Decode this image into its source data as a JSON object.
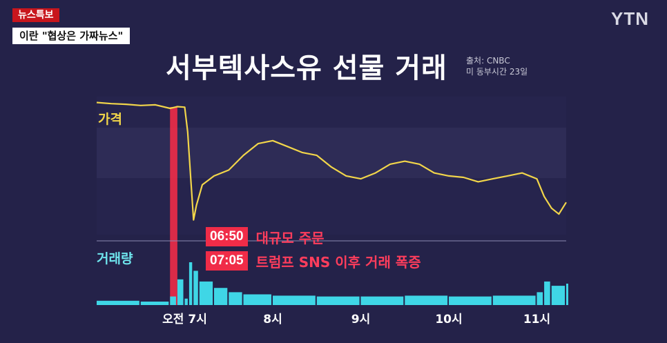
{
  "header": {
    "breaking_label": "뉴스특보",
    "headline": "이란 \"협상은 가짜뉴스\"",
    "logo": "YTN"
  },
  "title": "서부텍사스유 선물 거래",
  "source": {
    "line1": "출처: CNBC",
    "line2": "미 동부시간 23일"
  },
  "labels": {
    "price": "가격",
    "volume": "거래량"
  },
  "annotations": [
    {
      "time": "06:50",
      "text": "대규모 주문"
    },
    {
      "time": "07:05",
      "text": "트럼프 SNS 이후 거래 폭증"
    }
  ],
  "colors": {
    "background": "#242249",
    "price_line": "#f2d64a",
    "volume_bars": "#3fd6e6",
    "highlight": "#f02c48"
  },
  "chart_data": {
    "type": "line",
    "x_ticks": [
      "오전 7시",
      "8시",
      "9시",
      "10시",
      "11시"
    ],
    "highlight_window": [
      "06:50",
      "06:55"
    ],
    "price": {
      "points": [
        [
          "06:00",
          100
        ],
        [
          "06:10",
          99.6
        ],
        [
          "06:20",
          99.4
        ],
        [
          "06:30",
          99.0
        ],
        [
          "06:40",
          99.2
        ],
        [
          "06:50",
          98.0
        ],
        [
          "06:55",
          98.6
        ],
        [
          "07:00",
          98.4
        ],
        [
          "07:02",
          90.0
        ],
        [
          "07:04",
          75.0
        ],
        [
          "07:06",
          60.0
        ],
        [
          "07:08",
          65.0
        ],
        [
          "07:12",
          72.0
        ],
        [
          "07:20",
          75.0
        ],
        [
          "07:30",
          77.0
        ],
        [
          "07:40",
          82.0
        ],
        [
          "07:50",
          86.0
        ],
        [
          "08:00",
          87.0
        ],
        [
          "08:10",
          85.0
        ],
        [
          "08:20",
          83.0
        ],
        [
          "08:30",
          82.0
        ],
        [
          "08:40",
          78.0
        ],
        [
          "08:50",
          75.0
        ],
        [
          "09:00",
          74.0
        ],
        [
          "09:10",
          76.0
        ],
        [
          "09:20",
          79.0
        ],
        [
          "09:30",
          80.0
        ],
        [
          "09:40",
          79.0
        ],
        [
          "09:50",
          76.0
        ],
        [
          "10:00",
          75.0
        ],
        [
          "10:10",
          74.5
        ],
        [
          "10:20",
          73.0
        ],
        [
          "10:30",
          74.0
        ],
        [
          "10:40",
          75.0
        ],
        [
          "10:50",
          76.0
        ],
        [
          "11:00",
          74.0
        ],
        [
          "11:05",
          68.0
        ],
        [
          "11:10",
          64.0
        ],
        [
          "11:15",
          62.0
        ],
        [
          "11:20",
          66.0
        ]
      ]
    },
    "volume": {
      "points": [
        [
          "06:00",
          0.1
        ],
        [
          "06:30",
          0.08
        ],
        [
          "06:50",
          0.2
        ],
        [
          "06:55",
          0.6
        ],
        [
          "07:00",
          0.15
        ],
        [
          "07:03",
          1.0
        ],
        [
          "07:06",
          0.8
        ],
        [
          "07:10",
          0.55
        ],
        [
          "07:20",
          0.4
        ],
        [
          "07:30",
          0.3
        ],
        [
          "07:40",
          0.25
        ],
        [
          "08:00",
          0.22
        ],
        [
          "08:30",
          0.2
        ],
        [
          "09:00",
          0.2
        ],
        [
          "09:30",
          0.22
        ],
        [
          "10:00",
          0.2
        ],
        [
          "10:30",
          0.22
        ],
        [
          "11:00",
          0.3
        ],
        [
          "11:05",
          0.55
        ],
        [
          "11:10",
          0.45
        ],
        [
          "11:20",
          0.5
        ]
      ]
    }
  }
}
